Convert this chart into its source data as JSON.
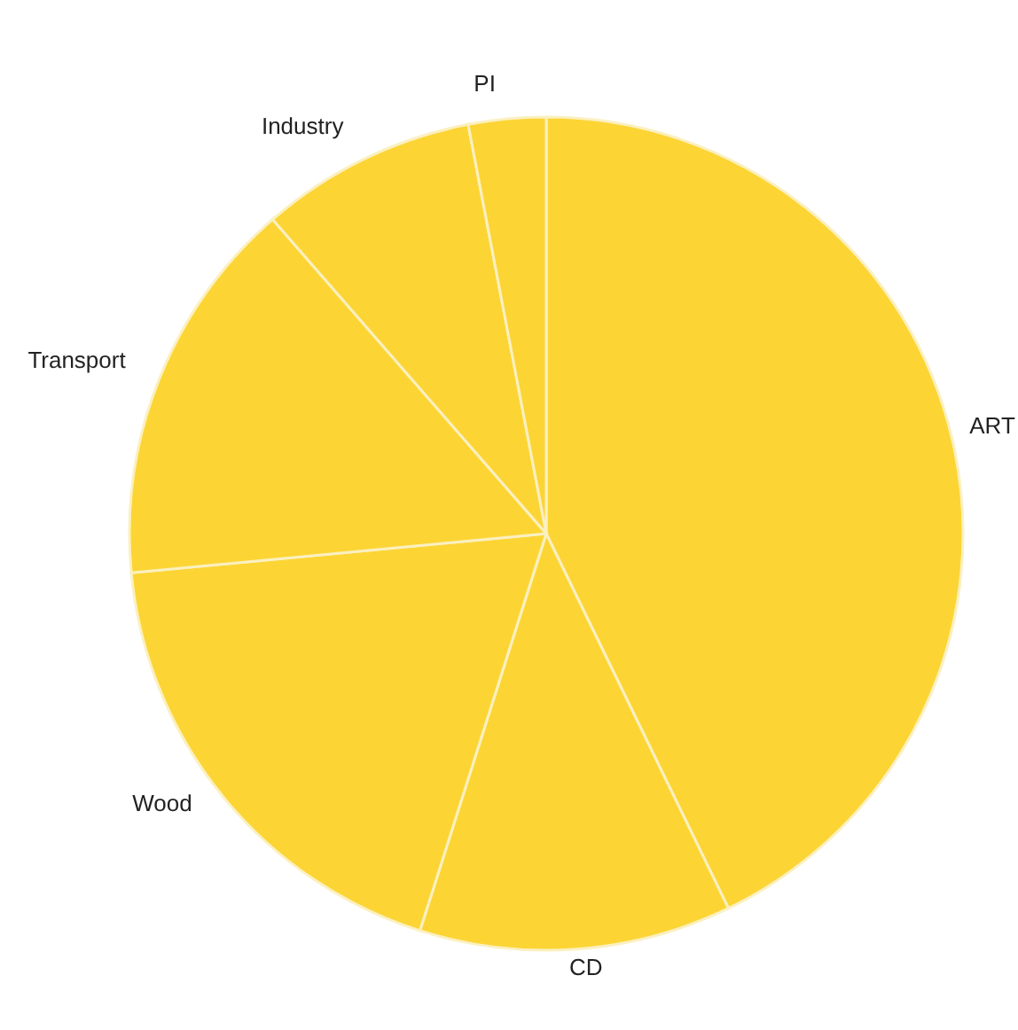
{
  "chart_data": {
    "type": "pie",
    "categories": [
      "ART",
      "CD",
      "Wood",
      "Transport",
      "Industry",
      "PI"
    ],
    "values": [
      42.8,
      12.1,
      18.6,
      15.1,
      8.4,
      3.0
    ],
    "colors": [
      "#fcd535",
      "#fcd535",
      "#fcd535",
      "#fcd535",
      "#fcd535",
      "#fcd535"
    ],
    "legend": false
  }
}
